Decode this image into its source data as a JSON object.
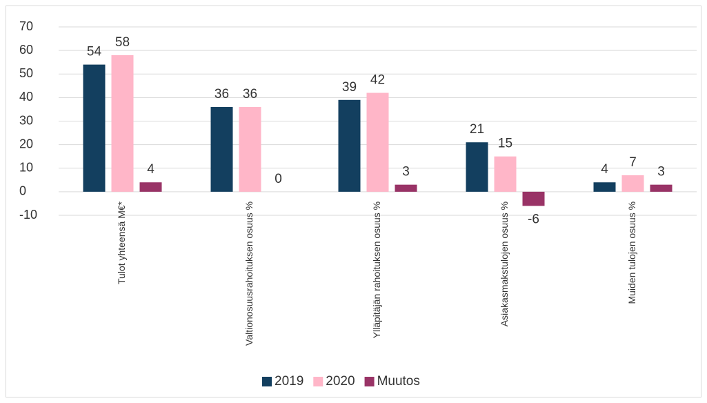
{
  "chart_data": {
    "type": "bar",
    "categories": [
      "Tulot yhteensä M€*",
      "Valtionosuusrahoituksen osuus %",
      "Ylläpitäjän rahoituksen osuus %",
      "Asiakasmakstulojen osuus %",
      "Muiden tulojen osuus %"
    ],
    "series": [
      {
        "name": "2019",
        "color": "#133f5f",
        "values": [
          54,
          36,
          39,
          21,
          4
        ]
      },
      {
        "name": "2020",
        "color": "#ffb6c8",
        "values": [
          58,
          36,
          42,
          15,
          7
        ]
      },
      {
        "name": "Muutos",
        "color": "#993366",
        "values": [
          4,
          0,
          3,
          -6,
          3
        ]
      }
    ],
    "ylim": [
      -10,
      70
    ],
    "yticks": [
      -10,
      0,
      10,
      20,
      30,
      40,
      50,
      60,
      70
    ],
    "grid": true,
    "legend": "bottom"
  }
}
